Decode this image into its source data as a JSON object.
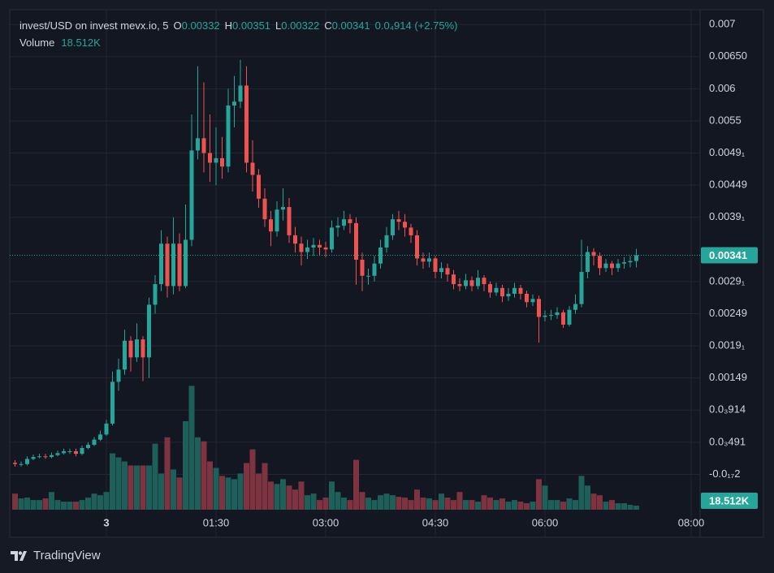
{
  "chart_data": {
    "type": "candlestick",
    "title": "invest/USD on invest mevx.io, 5",
    "ohlc_legend": [
      {
        "label": "O",
        "value": 0.00332
      },
      {
        "label": "H",
        "value": 0.00351
      },
      {
        "label": "L",
        "value": 0.00322
      },
      {
        "label": "C",
        "value": 0.00341
      }
    ],
    "change_label": "0.0₄914 (+2.75%)",
    "volume_name": "Volume",
    "volume_label": "18.512K",
    "logo": "TradingView",
    "up_color": "#26a69a",
    "down_color": "#ef5350",
    "volume_up_color": "#1f5f5a",
    "volume_down_color": "#7e3440",
    "grid": true,
    "x": [
      -75,
      -70,
      -65,
      -60,
      -55,
      -50,
      -45,
      -40,
      -35,
      -30,
      -25,
      -20,
      -15,
      -10,
      -5,
      0,
      5,
      10,
      15,
      20,
      25,
      30,
      35,
      40,
      45,
      50,
      55,
      60,
      65,
      70,
      75,
      80,
      85,
      90,
      95,
      100,
      105,
      110,
      115,
      120,
      125,
      130,
      135,
      140,
      145,
      150,
      155,
      160,
      165,
      170,
      175,
      180,
      185,
      190,
      195,
      200,
      205,
      210,
      215,
      220,
      225,
      230,
      235,
      240,
      245,
      250,
      255,
      260,
      265,
      270,
      275,
      280,
      285,
      290,
      295,
      300,
      305,
      310,
      315,
      320,
      325,
      330,
      335,
      340,
      345,
      350,
      355,
      360,
      365,
      370,
      375,
      380,
      385,
      390,
      395,
      400,
      405,
      410,
      415,
      420,
      425,
      430,
      435
    ],
    "open": [
      0.00018,
      0.00016,
      0.00016,
      0.00024,
      0.00027,
      0.00028,
      0.00027,
      0.0003,
      0.00033,
      0.00036,
      0.00036,
      0.00032,
      0.00041,
      0.00046,
      0.00054,
      0.00062,
      0.00079,
      0.00144,
      0.00163,
      0.00208,
      0.00182,
      0.0021,
      0.00182,
      0.00264,
      0.00296,
      0.00359,
      0.00293,
      0.00359,
      0.00293,
      0.00365,
      0.00504,
      0.00523,
      0.005,
      0.00485,
      0.00492,
      0.00479,
      0.00574,
      0.0058,
      0.00605,
      0.00485,
      0.00466,
      0.00429,
      0.00397,
      0.00378,
      0.00412,
      0.00416,
      0.00372,
      0.00359,
      0.00346,
      0.00353,
      0.00357,
      0.00353,
      0.0035,
      0.00384,
      0.00387,
      0.00397,
      0.00391,
      0.00334,
      0.00309,
      0.00309,
      0.00328,
      0.00353,
      0.00372,
      0.00397,
      0.00393,
      0.00384,
      0.00372,
      0.00336,
      0.00331,
      0.00336,
      0.00315,
      0.00321,
      0.00311,
      0.00296,
      0.00293,
      0.00302,
      0.00293,
      0.00306,
      0.00296,
      0.00283,
      0.0029,
      0.00277,
      0.00281,
      0.0029,
      0.00281,
      0.00268,
      0.00273,
      0.00245,
      0.00247,
      0.00248,
      0.00252,
      0.00233,
      0.00256,
      0.00265,
      0.00315,
      0.00346,
      0.0034,
      0.00321,
      0.00328,
      0.00321,
      0.00328,
      0.0033,
      0.00332
    ],
    "high": [
      0.00022,
      0.0002,
      0.00028,
      0.00031,
      0.00032,
      0.00032,
      0.00034,
      0.00037,
      0.0004,
      0.0004,
      0.0004,
      0.00045,
      0.0005,
      0.00058,
      0.00068,
      0.00085,
      0.0016,
      0.0018,
      0.00225,
      0.00215,
      0.00235,
      0.00215,
      0.00275,
      0.0031,
      0.0038,
      0.0037,
      0.004,
      0.00375,
      0.0042,
      0.0056,
      0.00635,
      0.0061,
      0.0056,
      0.0054,
      0.00525,
      0.006,
      0.0062,
      0.00645,
      0.00635,
      0.0052,
      0.00475,
      0.00445,
      0.0041,
      0.00425,
      0.00445,
      0.0043,
      0.00385,
      0.0037,
      0.00365,
      0.00368,
      0.00365,
      0.00362,
      0.00395,
      0.004,
      0.0041,
      0.00405,
      0.004,
      0.00345,
      0.0032,
      0.0034,
      0.00365,
      0.00385,
      0.00405,
      0.0041,
      0.00405,
      0.0039,
      0.0038,
      0.00345,
      0.00345,
      0.0034,
      0.0033,
      0.00328,
      0.00318,
      0.00305,
      0.00312,
      0.00308,
      0.00318,
      0.0031,
      0.003,
      0.00298,
      0.00295,
      0.0029,
      0.00298,
      0.00295,
      0.00286,
      0.0028,
      0.00278,
      0.00255,
      0.00256,
      0.0026,
      0.00256,
      0.00262,
      0.0028,
      0.00365,
      0.00355,
      0.00352,
      0.00345,
      0.00335,
      0.00332,
      0.00335,
      0.00338,
      0.0034,
      0.00351
    ],
    "low": [
      0.00012,
      0.00012,
      0.00014,
      0.00022,
      0.00025,
      0.00024,
      0.00025,
      0.00028,
      0.00031,
      0.00032,
      0.00028,
      0.0003,
      0.00039,
      0.00044,
      0.00052,
      0.0006,
      0.00076,
      0.0013,
      0.00155,
      0.0016,
      0.00175,
      0.00145,
      0.0015,
      0.0025,
      0.00285,
      0.00275,
      0.0028,
      0.00285,
      0.0029,
      0.00355,
      0.0049,
      0.0047,
      0.00455,
      0.0045,
      0.0046,
      0.0047,
      0.0054,
      0.0057,
      0.0047,
      0.0044,
      0.00415,
      0.00385,
      0.00355,
      0.0037,
      0.00395,
      0.0036,
      0.00345,
      0.00325,
      0.00335,
      0.0034,
      0.0034,
      0.00338,
      0.00345,
      0.0037,
      0.0038,
      0.00375,
      0.00295,
      0.00285,
      0.00295,
      0.003,
      0.0032,
      0.00345,
      0.00365,
      0.0038,
      0.0037,
      0.0036,
      0.00325,
      0.0032,
      0.00322,
      0.00305,
      0.00305,
      0.003,
      0.00288,
      0.00285,
      0.00288,
      0.00285,
      0.00288,
      0.00285,
      0.00275,
      0.00278,
      0.00268,
      0.0027,
      0.00275,
      0.00272,
      0.0026,
      0.00262,
      0.00205,
      0.00238,
      0.0024,
      0.00242,
      0.00228,
      0.0023,
      0.0025,
      0.0026,
      0.00305,
      0.00325,
      0.0031,
      0.00315,
      0.0031,
      0.00315,
      0.0032,
      0.00322,
      0.00322
    ],
    "close": [
      0.00016,
      0.00016,
      0.00024,
      0.00027,
      0.00028,
      0.00027,
      0.0003,
      0.00033,
      0.00036,
      0.00036,
      0.00032,
      0.00041,
      0.00046,
      0.00054,
      0.00062,
      0.00079,
      0.00144,
      0.00163,
      0.00208,
      0.00182,
      0.0021,
      0.00182,
      0.00264,
      0.00296,
      0.00359,
      0.00293,
      0.00359,
      0.00293,
      0.00365,
      0.00504,
      0.00523,
      0.005,
      0.00485,
      0.00492,
      0.00479,
      0.00574,
      0.0058,
      0.00605,
      0.00485,
      0.00466,
      0.00429,
      0.00397,
      0.00378,
      0.00412,
      0.00416,
      0.00372,
      0.00359,
      0.00346,
      0.00353,
      0.00357,
      0.00353,
      0.0035,
      0.00384,
      0.00387,
      0.00397,
      0.00391,
      0.00334,
      0.00309,
      0.00309,
      0.00328,
      0.00353,
      0.00372,
      0.00397,
      0.00393,
      0.00384,
      0.00372,
      0.00336,
      0.00331,
      0.00336,
      0.00315,
      0.00321,
      0.00311,
      0.00296,
      0.00293,
      0.00302,
      0.00293,
      0.00306,
      0.00296,
      0.00283,
      0.0029,
      0.00277,
      0.00281,
      0.0029,
      0.00281,
      0.00268,
      0.00273,
      0.00245,
      0.00247,
      0.00248,
      0.00252,
      0.00233,
      0.00256,
      0.00265,
      0.00315,
      0.00346,
      0.0034,
      0.00321,
      0.00328,
      0.00321,
      0.00328,
      0.0033,
      0.00332,
      0.00341
    ],
    "volume": [
      74000,
      51800,
      55500,
      44400,
      44400,
      51800,
      81400,
      44400,
      37000,
      37000,
      37000,
      44400,
      55500,
      74000,
      66600,
      81400,
      259000,
      240500,
      222000,
      203500,
      203500,
      203500,
      203500,
      303400,
      166500,
      333000,
      185000,
      148000,
      407000,
      569800,
      333000,
      314500,
      222000,
      192400,
      155400,
      148000,
      140600,
      166500,
      214600,
      277500,
      166500,
      214600,
      129500,
      118400,
      140600,
      111000,
      92500,
      129500,
      66600,
      74000,
      44400,
      55500,
      129500,
      81400,
      55500,
      44400,
      229400,
      81400,
      55500,
      44400,
      66600,
      74000,
      66600,
      59200,
      55500,
      44400,
      92500,
      55500,
      51800,
      44400,
      74000,
      55500,
      44400,
      81400,
      44400,
      44400,
      37000,
      66600,
      55500,
      44400,
      51800,
      37000,
      44400,
      37000,
      29600,
      37000,
      140600,
      111000,
      44400,
      44400,
      37000,
      51800,
      44400,
      155400,
      111000,
      74000,
      66600,
      37000,
      44400,
      29600,
      29600,
      22200,
      18512
    ],
    "xlim": [
      -79.33,
      487.33
    ],
    "xticks": [
      {
        "value": 0,
        "label": "3"
      },
      {
        "value": 90,
        "label": "01:30"
      },
      {
        "value": 180,
        "label": "03:00"
      },
      {
        "value": 270,
        "label": "04:30"
      },
      {
        "value": 360,
        "label": "06:00"
      },
      {
        "value": 480,
        "label": "08:00"
      }
    ],
    "ylim": [
      -0.00055,
      0.00723
    ],
    "yticks": [
      0.007,
      {
        "value": 0.0065,
        "label": "0.00650"
      },
      0.006,
      0.0055,
      {
        "value": 0.005,
        "label": "0.0049₁"
      },
      {
        "value": 0.0045,
        "label": "0.00449"
      },
      {
        "value": 0.004,
        "label": "0.0039₁"
      },
      {
        "value": 0.003,
        "label": "0.0029₁"
      },
      {
        "value": 0.0025,
        "label": "0.00249"
      },
      {
        "value": 0.002,
        "label": "0.0019₁"
      },
      {
        "value": 0.0015,
        "label": "0.00149"
      },
      {
        "value": 0.001,
        "label": "0.0₃914"
      },
      {
        "value": 0.0005,
        "label": "0.0₃491"
      },
      {
        "value": 0,
        "label": "-0.0₁₇2"
      }
    ],
    "y2lim": [
      0,
      2300000
    ]
  }
}
